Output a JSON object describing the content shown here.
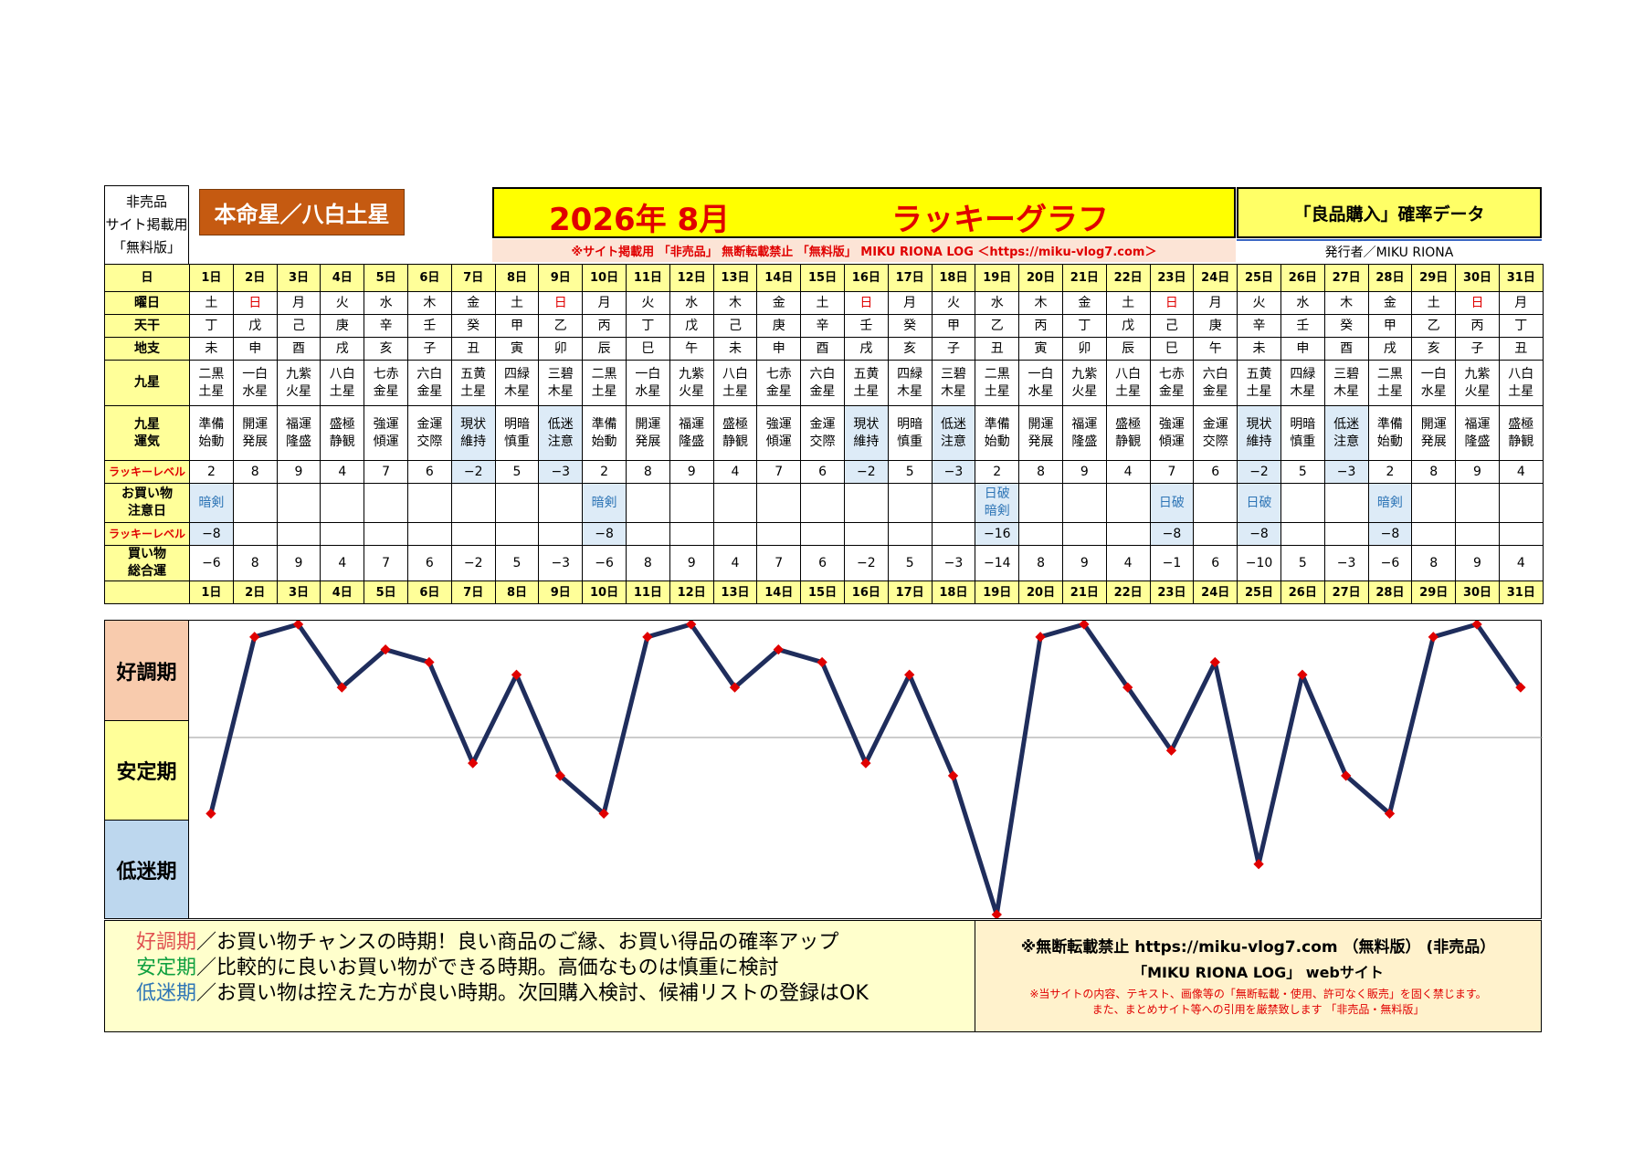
{
  "header": {
    "left_lines": [
      "非売品",
      "サイト掲載用",
      "「無料版」"
    ],
    "honmei": "本命星／八白土星",
    "year_month": "2026年 8月",
    "title": "ラッキーグラフ",
    "data_label": "「良品購入」確率データ",
    "notice": "※サイト掲載用 「非売品」  無断転載禁止 「無料版」 MIKU RIONA LOG ＜https://miku-vlog7.com＞",
    "publisher": "発行者／MIKU RIONA"
  },
  "row_labels": {
    "day": "日",
    "weekday": "曜日",
    "tenkan": "天干",
    "chishi": "地支",
    "kyusei": "九星",
    "kyusei_unki": [
      "九星",
      "運気"
    ],
    "lucky_level": "ラッキーレベル",
    "shopping_caution": [
      "お買い物",
      "注意日"
    ],
    "lucky_level2": "ラッキーレベル",
    "total": [
      "買い物",
      "総合運"
    ]
  },
  "days": [
    "1日",
    "2日",
    "3日",
    "4日",
    "5日",
    "6日",
    "7日",
    "8日",
    "9日",
    "10日",
    "11日",
    "12日",
    "13日",
    "14日",
    "15日",
    "16日",
    "17日",
    "18日",
    "19日",
    "20日",
    "21日",
    "22日",
    "23日",
    "24日",
    "25日",
    "26日",
    "27日",
    "28日",
    "29日",
    "30日",
    "31日"
  ],
  "weekdays": [
    "土",
    "日",
    "月",
    "火",
    "水",
    "木",
    "金",
    "土",
    "日",
    "月",
    "火",
    "水",
    "木",
    "金",
    "土",
    "日",
    "月",
    "火",
    "水",
    "木",
    "金",
    "土",
    "日",
    "月",
    "火",
    "水",
    "木",
    "金",
    "土",
    "日",
    "月"
  ],
  "tenkan": [
    "丁",
    "戊",
    "己",
    "庚",
    "辛",
    "壬",
    "癸",
    "甲",
    "乙",
    "丙",
    "丁",
    "戊",
    "己",
    "庚",
    "辛",
    "壬",
    "癸",
    "甲",
    "乙",
    "丙",
    "丁",
    "戊",
    "己",
    "庚",
    "辛",
    "壬",
    "癸",
    "甲",
    "乙",
    "丙",
    "丁"
  ],
  "chishi": [
    "未",
    "申",
    "酉",
    "戌",
    "亥",
    "子",
    "丑",
    "寅",
    "卯",
    "辰",
    "巳",
    "午",
    "未",
    "申",
    "酉",
    "戌",
    "亥",
    "子",
    "丑",
    "寅",
    "卯",
    "辰",
    "巳",
    "午",
    "未",
    "申",
    "酉",
    "戌",
    "亥",
    "子",
    "丑"
  ],
  "kyusei": [
    [
      "二黒",
      "土星"
    ],
    [
      "一白",
      "水星"
    ],
    [
      "九紫",
      "火星"
    ],
    [
      "八白",
      "土星"
    ],
    [
      "七赤",
      "金星"
    ],
    [
      "六白",
      "金星"
    ],
    [
      "五黄",
      "土星"
    ],
    [
      "四緑",
      "木星"
    ],
    [
      "三碧",
      "木星"
    ],
    [
      "二黒",
      "土星"
    ],
    [
      "一白",
      "水星"
    ],
    [
      "九紫",
      "火星"
    ],
    [
      "八白",
      "土星"
    ],
    [
      "七赤",
      "金星"
    ],
    [
      "六白",
      "金星"
    ],
    [
      "五黄",
      "土星"
    ],
    [
      "四緑",
      "木星"
    ],
    [
      "三碧",
      "木星"
    ],
    [
      "二黒",
      "土星"
    ],
    [
      "一白",
      "水星"
    ],
    [
      "九紫",
      "火星"
    ],
    [
      "八白",
      "土星"
    ],
    [
      "七赤",
      "金星"
    ],
    [
      "六白",
      "金星"
    ],
    [
      "五黄",
      "土星"
    ],
    [
      "四緑",
      "木星"
    ],
    [
      "三碧",
      "木星"
    ],
    [
      "二黒",
      "土星"
    ],
    [
      "一白",
      "水星"
    ],
    [
      "九紫",
      "火星"
    ],
    [
      "八白",
      "土星"
    ]
  ],
  "unki": [
    [
      "準備",
      "始動"
    ],
    [
      "開運",
      "発展"
    ],
    [
      "福運",
      "隆盛"
    ],
    [
      "盛極",
      "静観"
    ],
    [
      "強運",
      "傾運"
    ],
    [
      "金運",
      "交際"
    ],
    [
      "現状",
      "維持"
    ],
    [
      "明暗",
      "慎重"
    ],
    [
      "低迷",
      "注意"
    ],
    [
      "準備",
      "始動"
    ],
    [
      "開運",
      "発展"
    ],
    [
      "福運",
      "隆盛"
    ],
    [
      "盛極",
      "静観"
    ],
    [
      "強運",
      "傾運"
    ],
    [
      "金運",
      "交際"
    ],
    [
      "現状",
      "維持"
    ],
    [
      "明暗",
      "慎重"
    ],
    [
      "低迷",
      "注意"
    ],
    [
      "準備",
      "始動"
    ],
    [
      "開運",
      "発展"
    ],
    [
      "福運",
      "隆盛"
    ],
    [
      "盛極",
      "静観"
    ],
    [
      "強運",
      "傾運"
    ],
    [
      "金運",
      "交際"
    ],
    [
      "現状",
      "維持"
    ],
    [
      "明暗",
      "慎重"
    ],
    [
      "低迷",
      "注意"
    ],
    [
      "準備",
      "始動"
    ],
    [
      "開運",
      "発展"
    ],
    [
      "福運",
      "隆盛"
    ],
    [
      "盛極",
      "静観"
    ]
  ],
  "lucky_level": [
    "2",
    "8",
    "9",
    "4",
    "7",
    "6",
    "−2",
    "5",
    "−3",
    "2",
    "8",
    "9",
    "4",
    "7",
    "6",
    "−2",
    "5",
    "−3",
    "2",
    "8",
    "9",
    "4",
    "7",
    "6",
    "−2",
    "5",
    "−3",
    "2",
    "8",
    "9",
    "4"
  ],
  "caution": [
    "暗剣",
    "",
    "",
    "",
    "",
    "",
    "",
    "",
    "",
    "暗剣",
    "",
    "",
    "",
    "",
    "",
    "",
    "",
    "",
    "日破\n暗剣",
    "",
    "",
    "",
    "日破",
    "",
    "日破",
    "",
    "",
    "暗剣",
    "",
    "",
    ""
  ],
  "lucky_level2": [
    "−8",
    "",
    "",
    "",
    "",
    "",
    "",
    "",
    "",
    "−8",
    "",
    "",
    "",
    "",
    "",
    "",
    "",
    "",
    "−16",
    "",
    "",
    "",
    "−8",
    "",
    "−8",
    "",
    "",
    "−8",
    "",
    "",
    ""
  ],
  "total": [
    "−6",
    "8",
    "9",
    "4",
    "7",
    "6",
    "−2",
    "5",
    "−3",
    "−6",
    "8",
    "9",
    "4",
    "7",
    "6",
    "−2",
    "5",
    "−3",
    "−14",
    "8",
    "9",
    "4",
    "−1",
    "6",
    "−10",
    "5",
    "−3",
    "−6",
    "8",
    "9",
    "4"
  ],
  "bands": {
    "good": "好調期",
    "stable": "安定期",
    "low": "低迷期"
  },
  "chart_data": {
    "type": "line",
    "x": [
      1,
      2,
      3,
      4,
      5,
      6,
      7,
      8,
      9,
      10,
      11,
      12,
      13,
      14,
      15,
      16,
      17,
      18,
      19,
      20,
      21,
      22,
      23,
      24,
      25,
      26,
      27,
      28,
      29,
      30,
      31
    ],
    "series": [
      {
        "values": [
          -6,
          8,
          9,
          4,
          7,
          6,
          -2,
          5,
          -3,
          -6,
          8,
          9,
          4,
          7,
          6,
          -2,
          5,
          -3,
          -14,
          8,
          9,
          4,
          -1,
          6,
          -10,
          5,
          -3,
          -6,
          8,
          9,
          4
        ]
      }
    ],
    "ylim": [
      -14,
      9
    ],
    "line_color": "#1f2d5c",
    "marker_color": "#e00000"
  },
  "footer": {
    "good_label": "好調期",
    "good_text": "／お買い物チャンスの時期！良い商品のご縁、お買い得品の確率アップ",
    "stable_label": "安定期",
    "stable_text": "／比較的に良いお買い物ができる時期。高価なものは慎重に検討",
    "low_label": "低迷期",
    "low_text": "／お買い物は控えた方が良い時期。次回購入検討、候補リストの登録はOK",
    "right_line1": "※無断転載禁止  https://miku-vlog7.com （無料版） (非売品）",
    "right_line2": "「MIKU RIONA LOG」 webサイト",
    "right_line3": "※当サイトの内容、テキスト、画像等の「無断転載・使用、許可なく販売」を固く禁じます。",
    "right_line4": "また、まとめサイト等への引用を厳禁致します 「非売品・無料版」"
  }
}
